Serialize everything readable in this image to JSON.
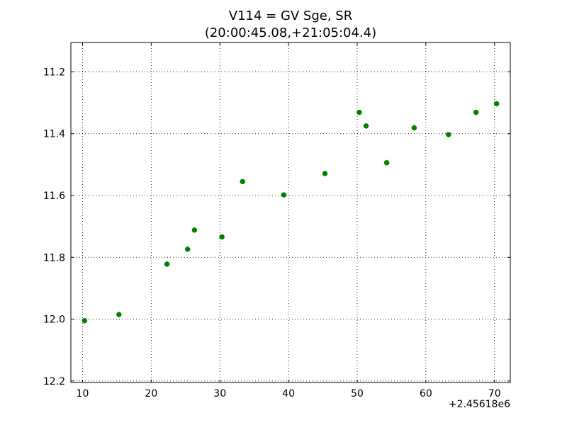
{
  "chart_data": {
    "type": "scatter",
    "title": "V114 = GV Sge, SR",
    "subtitle": "(20:00:45.08,+21:05:04.4)",
    "xlabel": "",
    "ylabel": "",
    "x_offset_label": "+2.45618e6",
    "xlim": [
      8.3,
      72.3
    ],
    "ylim": [
      12.205,
      11.105
    ],
    "y_inverted": true,
    "grid": true,
    "marker_color": "#008000",
    "x_ticks": [
      10,
      20,
      30,
      40,
      50,
      60,
      70
    ],
    "x_tick_labels": [
      "10",
      "20",
      "30",
      "40",
      "50",
      "60",
      "70"
    ],
    "y_ticks": [
      11.2,
      11.4,
      11.6,
      11.8,
      12.0,
      12.2
    ],
    "y_tick_labels": [
      "11.2",
      "11.4",
      "11.6",
      "11.8",
      "12.0",
      "12.2"
    ],
    "series": [
      {
        "x": [
          10.3,
          15.3,
          22.3,
          25.3,
          26.3,
          30.3,
          33.3,
          39.3,
          45.3,
          50.3,
          51.3,
          54.3,
          58.3,
          63.3,
          67.3,
          70.3
        ],
        "y": [
          12.005,
          11.985,
          11.822,
          11.774,
          11.712,
          11.734,
          11.555,
          11.598,
          11.529,
          11.331,
          11.375,
          11.494,
          11.381,
          11.403,
          11.331,
          11.303
        ]
      }
    ]
  }
}
